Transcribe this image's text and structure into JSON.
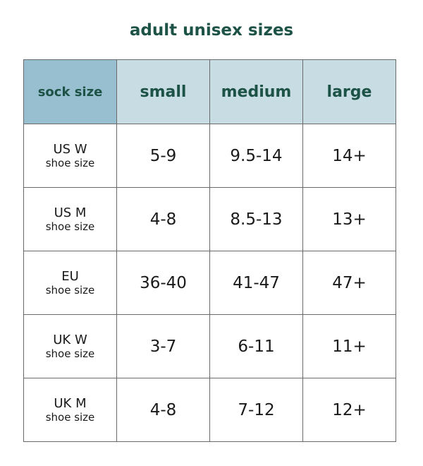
{
  "title": "adult unisex sizes",
  "headers": [
    "sock size",
    "small",
    "medium",
    "large"
  ],
  "rows": [
    {
      "region": "US W",
      "sub": "shoe size",
      "values": [
        "5-9",
        "9.5-14",
        "14+"
      ]
    },
    {
      "region": "US M",
      "sub": "shoe size",
      "values": [
        "4-8",
        "8.5-13",
        "13+"
      ]
    },
    {
      "region": "EU",
      "sub": "shoe size",
      "values": [
        "36-40",
        "41-47",
        "47+"
      ]
    },
    {
      "region": "UK W",
      "sub": "shoe size",
      "values": [
        "3-7",
        "6-11",
        "11+"
      ]
    },
    {
      "region": "UK M",
      "sub": "shoe size",
      "values": [
        "4-8",
        "7-12",
        "12+"
      ]
    }
  ],
  "colors": {
    "title": "#1d5246",
    "header_first": "#98bfcf",
    "header": "#c8dce3"
  }
}
